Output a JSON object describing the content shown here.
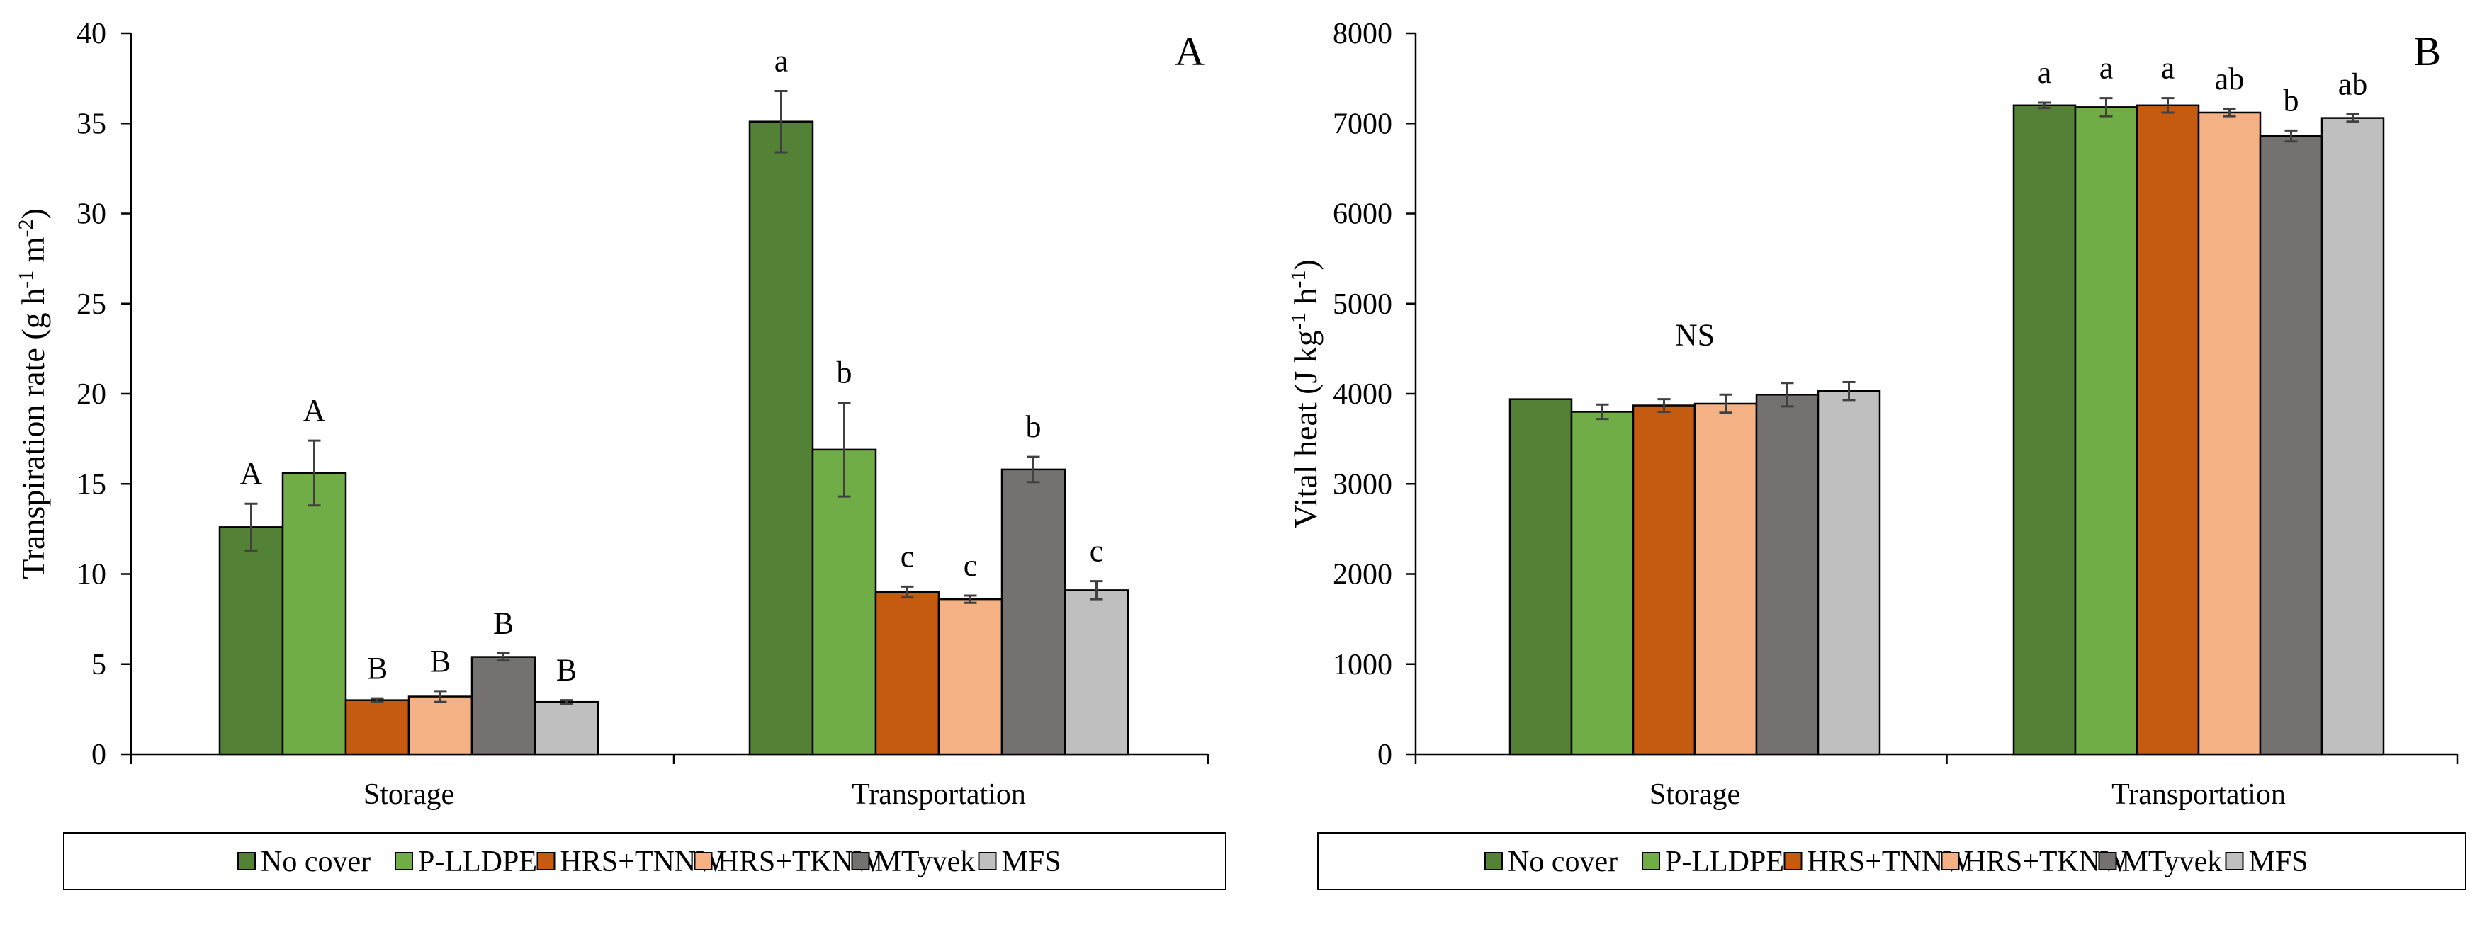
{
  "series_colors": [
    "#538135",
    "#70AD47",
    "#C55A11",
    "#F4B183",
    "#767171",
    "#BFBFBF"
  ],
  "chart_data": [
    {
      "type": "bar",
      "panel": "A",
      "ylabel_main": "Transpiration rate (g h",
      "ylabel_exp1": "-1",
      "ylabel_mid": " m",
      "ylabel_exp2": "-2",
      "ylabel_end": ")",
      "ylim": [
        0,
        40
      ],
      "yticks": [
        "0",
        "5",
        "10",
        "15",
        "20",
        "25",
        "30",
        "35",
        "40"
      ],
      "categories": [
        "Storage",
        "Transportation"
      ],
      "series": [
        {
          "name": "No cover",
          "values": [
            12.6,
            35.1
          ],
          "errors": [
            1.3,
            1.7
          ],
          "letters": [
            "A",
            "a"
          ]
        },
        {
          "name": "P-LLDPE",
          "values": [
            15.6,
            16.9
          ],
          "errors": [
            1.8,
            2.6
          ],
          "letters": [
            "A",
            "b"
          ]
        },
        {
          "name": "HRS+TNNW",
          "values": [
            3.0,
            9.0
          ],
          "errors": [
            0.1,
            0.3
          ],
          "letters": [
            "B",
            "c"
          ]
        },
        {
          "name": "HRS+TKNW",
          "values": [
            3.2,
            8.6
          ],
          "errors": [
            0.3,
            0.2
          ],
          "letters": [
            "B",
            "c"
          ]
        },
        {
          "name": "MTyvek",
          "values": [
            5.4,
            15.8
          ],
          "errors": [
            0.2,
            0.7
          ],
          "letters": [
            "B",
            "b"
          ]
        },
        {
          "name": "MFS",
          "values": [
            2.9,
            9.1
          ],
          "errors": [
            0.1,
            0.5
          ],
          "letters": [
            "B",
            "c"
          ]
        }
      ],
      "legend": [
        "No cover",
        "P-LLDPE",
        "HRS+TNNW",
        "HRS+TKNW",
        "MTyvek",
        "MFS"
      ],
      "legend_position": "bottom"
    },
    {
      "type": "bar",
      "panel": "B",
      "ylabel_main": "Vital heat (J kg",
      "ylabel_exp1": "-1",
      "ylabel_mid": " h",
      "ylabel_exp2": "-1",
      "ylabel_end": ")",
      "ylim": [
        0,
        8000
      ],
      "yticks": [
        "0",
        "1000",
        "2000",
        "3000",
        "4000",
        "5000",
        "6000",
        "7000",
        "8000"
      ],
      "categories": [
        "Storage",
        "Transportation"
      ],
      "group_labels": [
        "NS",
        ""
      ],
      "series": [
        {
          "name": "No cover",
          "values": [
            3940,
            7200
          ],
          "errors": [
            0,
            30
          ],
          "letters": [
            "",
            "a"
          ]
        },
        {
          "name": "P-LLDPE",
          "values": [
            3800,
            7180
          ],
          "errors": [
            80,
            100
          ],
          "letters": [
            "",
            "a"
          ]
        },
        {
          "name": "HRS+TNNW",
          "values": [
            3870,
            7200
          ],
          "errors": [
            70,
            80
          ],
          "letters": [
            "",
            "a"
          ]
        },
        {
          "name": "HRS+TKNW",
          "values": [
            3890,
            7120
          ],
          "errors": [
            100,
            40
          ],
          "letters": [
            "",
            "ab"
          ]
        },
        {
          "name": "MTyvek",
          "values": [
            3990,
            6860
          ],
          "errors": [
            130,
            60
          ],
          "letters": [
            "",
            "b"
          ]
        },
        {
          "name": "MFS",
          "values": [
            4030,
            7060
          ],
          "errors": [
            100,
            40
          ],
          "letters": [
            "",
            "ab"
          ]
        }
      ],
      "legend": [
        "No cover",
        "P-LLDPE",
        "HRS+TNNW",
        "HRS+TKNW",
        "MTyvek",
        "MFS"
      ],
      "legend_position": "bottom"
    }
  ]
}
